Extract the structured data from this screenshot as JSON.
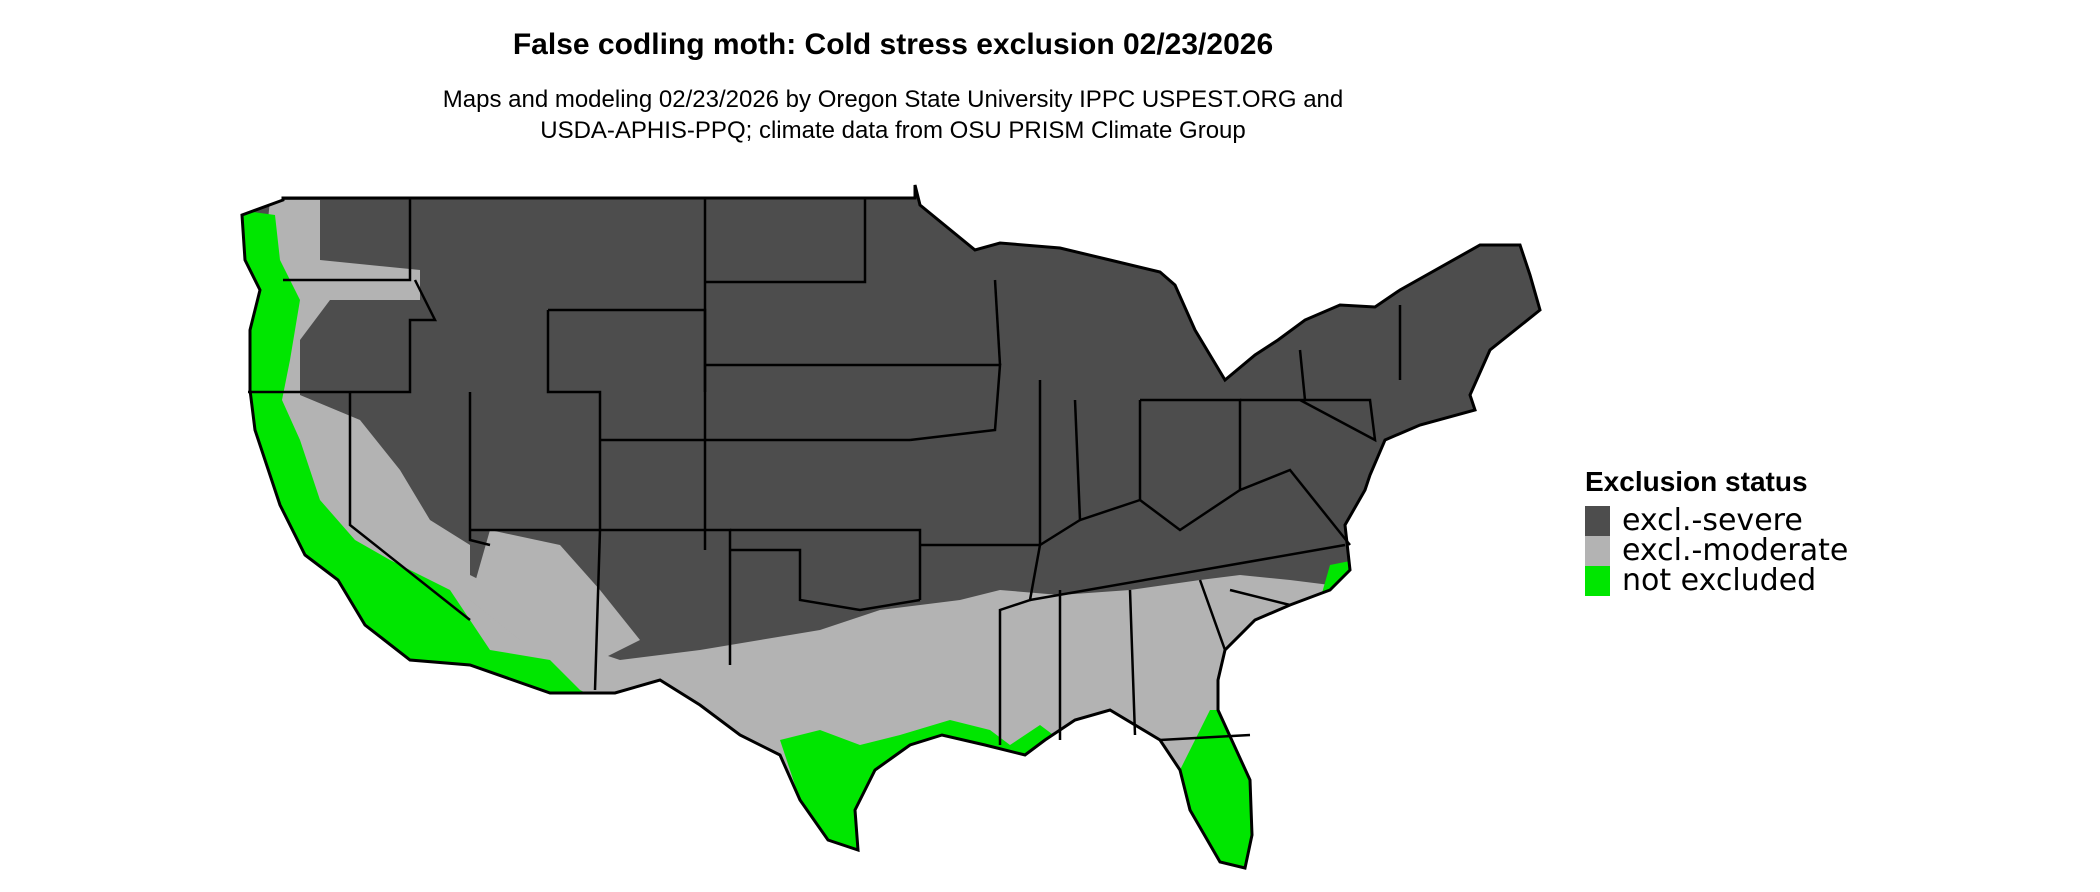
{
  "title": "False codling moth: Cold stress exclusion 02/23/2026",
  "subtitle_line1": "Maps and modeling 02/23/2026 by Oregon State University IPPC USPEST.ORG and",
  "subtitle_line2": "USDA-APHIS-PPQ; climate data from OSU PRISM Climate Group",
  "legend": {
    "title": "Exclusion status",
    "items": [
      {
        "label": "excl.-severe",
        "color": "#4d4d4d"
      },
      {
        "label": "excl.-moderate",
        "color": "#b3b3b3"
      },
      {
        "label": "not excluded",
        "color": "#00e600"
      }
    ]
  },
  "colors": {
    "border": "#000000",
    "background": "#ffffff"
  }
}
